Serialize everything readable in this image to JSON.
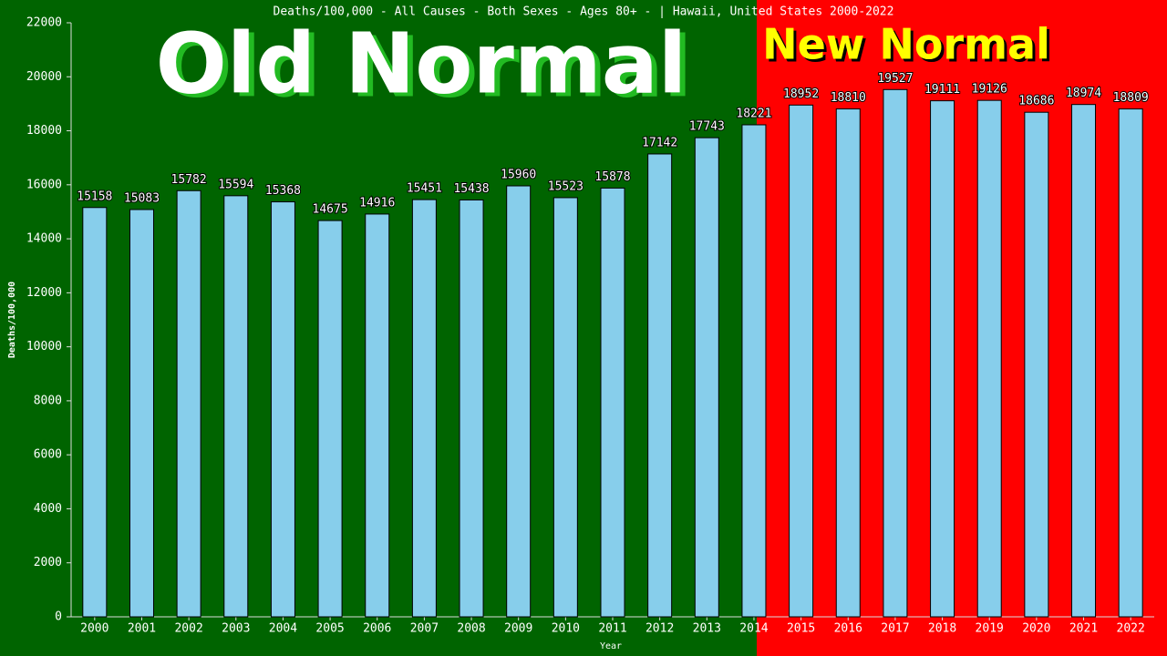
{
  "chart_data": {
    "type": "bar",
    "title": "Deaths/100,000 - All Causes - Both Sexes - Ages 80+ -  | Hawaii, United States 2000-2022",
    "annotations": [
      "Old Normal",
      "New Normal"
    ],
    "xlabel": "Year",
    "ylabel": "Deaths/100,000",
    "categories": [
      "2000",
      "2001",
      "2002",
      "2003",
      "2004",
      "2005",
      "2006",
      "2007",
      "2008",
      "2009",
      "2010",
      "2011",
      "2012",
      "2013",
      "2014",
      "2015",
      "2016",
      "2017",
      "2018",
      "2019",
      "2020",
      "2021",
      "2022"
    ],
    "values": [
      15158,
      15083,
      15782,
      15594,
      15368,
      14675,
      14916,
      15451,
      15438,
      15960,
      15523,
      15878,
      17142,
      17743,
      18221,
      18952,
      18810,
      19527,
      19111,
      19126,
      18686,
      18974,
      18809
    ],
    "color": "#87ceeb",
    "ylim": [
      0,
      22000
    ],
    "yticks": [
      0,
      2000,
      4000,
      6000,
      8000,
      10000,
      12000,
      14000,
      16000,
      18000,
      20000,
      22000
    ]
  }
}
